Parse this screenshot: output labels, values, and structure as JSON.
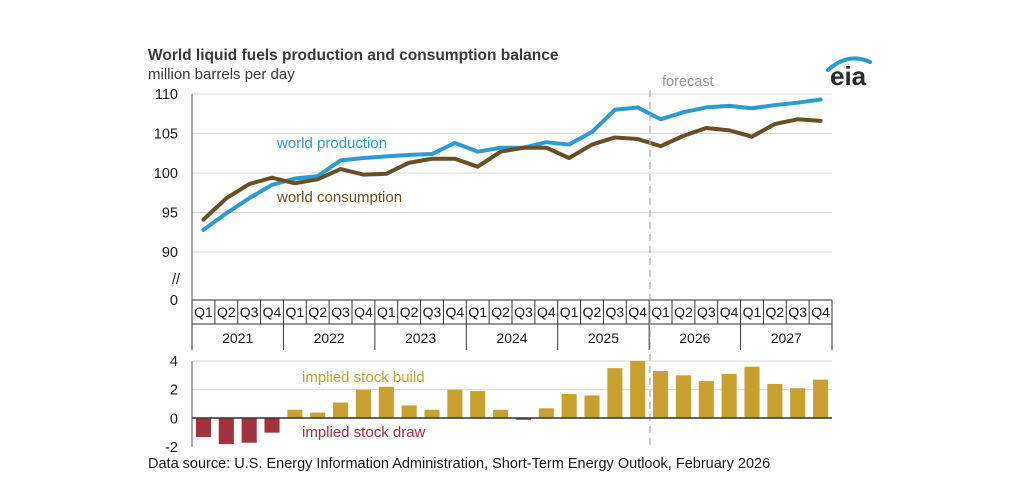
{
  "chart_data": [
    {
      "type": "line",
      "title": "World liquid fuels production and consumption balance",
      "ylabel": "million barrels per day",
      "ylim": [
        90,
        110
      ],
      "yticks": [
        "110",
        "105",
        "100",
        "95",
        "90",
        "0"
      ],
      "axis_break": "//",
      "forecast_label": "forecast",
      "quarters": [
        "Q1",
        "Q2",
        "Q3",
        "Q4",
        "Q1",
        "Q2",
        "Q3",
        "Q4",
        "Q1",
        "Q2",
        "Q3",
        "Q4",
        "Q1",
        "Q2",
        "Q3",
        "Q4",
        "Q1",
        "Q2",
        "Q3",
        "Q4",
        "Q1",
        "Q2",
        "Q3",
        "Q4",
        "Q1",
        "Q2",
        "Q3",
        "Q4"
      ],
      "years": [
        "2021",
        "2022",
        "2023",
        "2024",
        "2025",
        "2026",
        "2027"
      ],
      "series": [
        {
          "name": "world production",
          "color": "#2b9bd6",
          "values": [
            92.8,
            94.9,
            96.8,
            98.5,
            99.3,
            99.6,
            101.6,
            101.9,
            102.1,
            102.3,
            102.4,
            103.8,
            102.7,
            103.2,
            103.2,
            103.9,
            103.6,
            105.2,
            108.0,
            108.3,
            106.8,
            107.7,
            108.3,
            108.5,
            108.2,
            108.6,
            108.9,
            109.3
          ]
        },
        {
          "name": "world consumption",
          "color": "#6b4f22",
          "values": [
            94.1,
            96.8,
            98.6,
            99.4,
            98.7,
            99.2,
            100.5,
            99.8,
            99.9,
            101.3,
            101.8,
            101.8,
            100.8,
            102.7,
            103.2,
            103.2,
            101.9,
            103.6,
            104.5,
            104.3,
            103.4,
            104.7,
            105.7,
            105.4,
            104.6,
            106.2,
            106.8,
            106.6
          ]
        }
      ]
    },
    {
      "type": "bar",
      "ylim": [
        -2,
        4
      ],
      "yticks": [
        "4",
        "2",
        "0",
        "-2"
      ],
      "series": [
        {
          "name": "implied stock  build",
          "color": "#c9a130",
          "display": "positive values"
        },
        {
          "name": "implied stock draw",
          "color": "#a3313e",
          "display": "negative values"
        }
      ],
      "values": [
        -1.3,
        -1.8,
        -1.7,
        -1.0,
        0.6,
        0.4,
        1.1,
        2.0,
        2.2,
        0.9,
        0.6,
        2.0,
        1.9,
        0.6,
        -0.1,
        0.7,
        1.7,
        1.6,
        3.5,
        4.0,
        3.3,
        3.0,
        2.6,
        3.1,
        3.6,
        2.4,
        2.1,
        2.7
      ]
    }
  ],
  "source": "Data source: U.S. Energy Information Administration, Short-Term Energy Outlook, February 2026",
  "logo_text": "eia"
}
